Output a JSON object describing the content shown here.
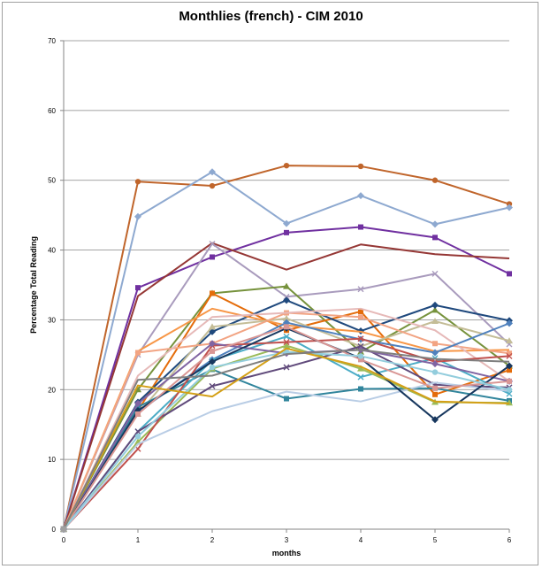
{
  "chart_data": {
    "type": "line",
    "title": "Monthlies (french) - CIM 2010",
    "xlabel": "months",
    "ylabel": "Percentage Total Reading",
    "x": [
      0,
      1,
      2,
      3,
      4,
      5,
      6
    ],
    "xlim": [
      0,
      6
    ],
    "ylim": [
      0,
      70
    ],
    "yticks": [
      0,
      10,
      20,
      30,
      40,
      50,
      60,
      70
    ],
    "xticks": [
      0,
      1,
      2,
      3,
      4,
      5,
      6
    ],
    "grid": "horizontal",
    "legend": "none",
    "series": [
      {
        "color": "#C0652B",
        "marker": "circle",
        "values": [
          0,
          49.8,
          49.2,
          52.1,
          52.0,
          50.0,
          46.6
        ]
      },
      {
        "color": "#8EA9D0",
        "marker": "diamond",
        "values": [
          0,
          44.8,
          51.2,
          43.8,
          47.8,
          43.7,
          46.1
        ]
      },
      {
        "color": "#7030A0",
        "marker": "square",
        "values": [
          0,
          34.6,
          39.0,
          42.5,
          43.3,
          41.8,
          36.6
        ]
      },
      {
        "color": "#953735",
        "marker": "none",
        "values": [
          0,
          33.4,
          41.0,
          37.2,
          40.8,
          39.4,
          38.8
        ]
      },
      {
        "color": "#A99BBD",
        "marker": "x",
        "values": [
          0,
          25.0,
          40.9,
          33.3,
          34.4,
          36.6,
          26.5
        ]
      },
      {
        "color": "#76923C",
        "marker": "triangle",
        "values": [
          0,
          20.0,
          33.8,
          34.8,
          25.4,
          31.4,
          23.4
        ]
      },
      {
        "color": "#E46C0A",
        "marker": "square",
        "values": [
          0,
          17.0,
          33.8,
          28.5,
          31.2,
          19.3,
          22.8
        ]
      },
      {
        "color": "#1F497D",
        "marker": "diamond",
        "values": [
          0,
          18.2,
          28.3,
          32.8,
          28.4,
          32.1,
          29.9
        ]
      },
      {
        "color": "#F79646",
        "marker": "none",
        "values": [
          0,
          25.5,
          31.6,
          29.2,
          28.3,
          25.5,
          25.7
        ]
      },
      {
        "color": "#C4BD97",
        "marker": "triangle",
        "values": [
          0,
          16.5,
          29.0,
          30.2,
          26.2,
          29.8,
          27.0
        ]
      },
      {
        "color": "#F2A483",
        "marker": "square",
        "values": [
          0,
          25.3,
          26.6,
          31.0,
          30.4,
          26.6,
          25.2
        ]
      },
      {
        "color": "#E6B9B8",
        "marker": "none",
        "values": [
          0,
          22.0,
          30.4,
          31.0,
          31.6,
          28.5,
          21.2
        ]
      },
      {
        "color": "#4F81BD",
        "marker": "diamond",
        "values": [
          0,
          16.8,
          24.3,
          29.6,
          27.2,
          25.3,
          29.5
        ]
      },
      {
        "color": "#31859C",
        "marker": "square",
        "values": [
          0,
          17.5,
          22.9,
          18.7,
          20.1,
          20.2,
          18.4
        ]
      },
      {
        "color": "#4BACC6",
        "marker": "x",
        "values": [
          0,
          14.0,
          24.2,
          27.6,
          21.8,
          24.5,
          19.4
        ]
      },
      {
        "color": "#9BBB59",
        "marker": "triangle",
        "values": [
          0,
          12.5,
          23.0,
          26.3,
          23.0,
          18.2,
          18.1
        ]
      },
      {
        "color": "#604A7B",
        "marker": "x",
        "values": [
          0,
          14.0,
          20.5,
          23.2,
          26.2,
          20.7,
          20.3
        ]
      },
      {
        "color": "#C0504D",
        "marker": "x",
        "values": [
          0,
          11.5,
          26.3,
          26.8,
          27.3,
          24.0,
          24.8
        ]
      },
      {
        "color": "#8064A2",
        "marker": "diamond",
        "values": [
          0,
          18.0,
          26.6,
          25.2,
          25.7,
          23.7,
          21.2
        ]
      },
      {
        "color": "#B9CDE5",
        "marker": "none",
        "values": [
          0,
          12.2,
          16.9,
          19.7,
          18.3,
          21.0,
          19.8
        ]
      },
      {
        "color": "#17375E",
        "marker": "diamond",
        "values": [
          0,
          17.0,
          24.0,
          28.8,
          24.5,
          15.7,
          23.4
        ]
      },
      {
        "color": "#D99694",
        "marker": "square",
        "values": [
          0,
          16.5,
          25.5,
          29.0,
          24.3,
          20.2,
          21.2
        ]
      },
      {
        "color": "#93CDDD",
        "marker": "circle",
        "values": [
          0,
          13.3,
          23.2,
          25.4,
          24.8,
          22.5,
          20.0
        ]
      },
      {
        "color": "#D4A017",
        "marker": "none",
        "values": [
          0,
          20.6,
          19.0,
          25.9,
          23.3,
          18.3,
          18.0
        ]
      },
      {
        "color": "#7F7F7F",
        "marker": "none",
        "values": [
          0,
          21.4,
          22.0,
          25.1,
          25.7,
          24.4,
          24.0
        ]
      }
    ]
  }
}
